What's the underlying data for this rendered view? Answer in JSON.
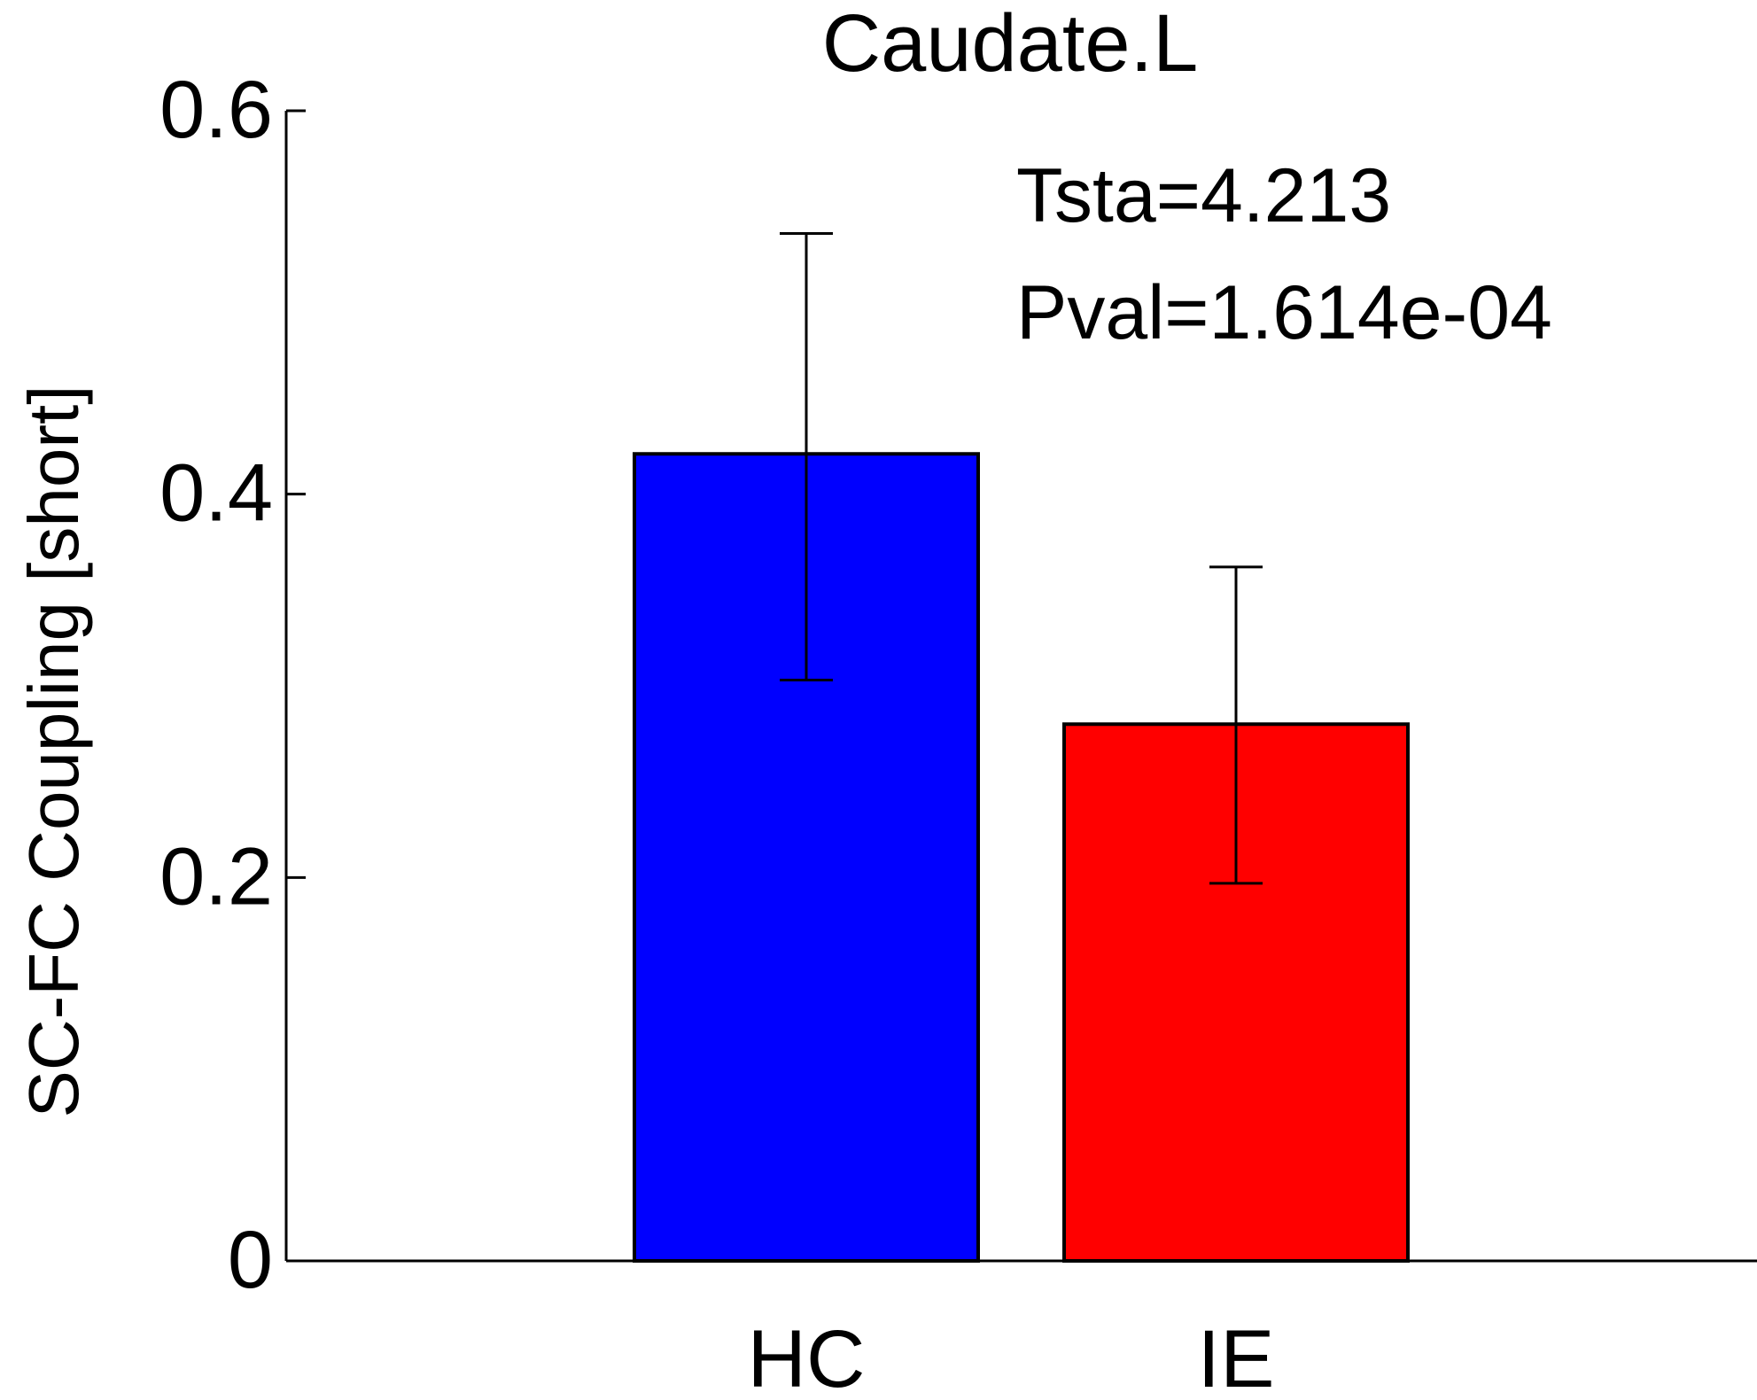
{
  "chart_data": {
    "type": "bar",
    "title": "Caudate.L",
    "ylabel": "SC-FC Coupling [short]",
    "xlabel": "",
    "categories": [
      "HC",
      "IE"
    ],
    "values": [
      0.421,
      0.28
    ],
    "error_bars": [
      {
        "low": 0.303,
        "high": 0.536
      },
      {
        "low": 0.197,
        "high": 0.362
      }
    ],
    "bar_colors": [
      "#0000ff",
      "#ff0000"
    ],
    "ylim": [
      0,
      0.6
    ],
    "yticks": [
      0,
      0.2,
      0.4,
      0.6
    ],
    "ytick_labels": [
      "0",
      "0.2",
      "0.4",
      "0.6"
    ],
    "grid": false,
    "annotations": [
      "Tsta=4.213",
      "Pval=1.614e-04"
    ]
  }
}
